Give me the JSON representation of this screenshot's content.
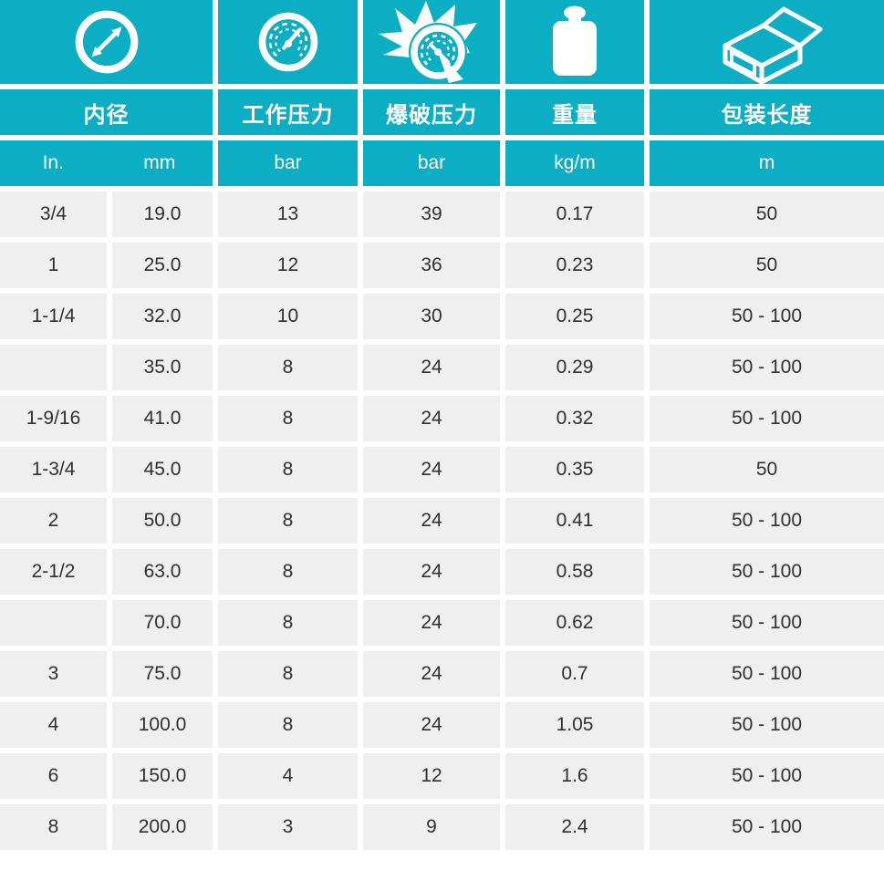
{
  "theme": {
    "accent": "#0BAEC2",
    "cell_bg": "#EFEFEF",
    "cell_text": "#303030",
    "header_text": "#FFFFFF",
    "page_bg": "#FFFFFF"
  },
  "header": {
    "columns": [
      {
        "id": "inner-diameter",
        "icon": "diameter-icon",
        "label": "内径",
        "units": [
          "In.",
          "mm"
        ]
      },
      {
        "id": "working-pressure",
        "icon": "pressure-gauge-icon",
        "label": "工作压力",
        "unit": "bar"
      },
      {
        "id": "burst-pressure",
        "icon": "burst-gauge-icon",
        "label": "爆破压力",
        "unit": "bar"
      },
      {
        "id": "weight",
        "icon": "weight-icon",
        "label": "重量",
        "unit": "kg/m"
      },
      {
        "id": "packing-length",
        "icon": "package-box-icon",
        "label": "包装长度",
        "unit": "m"
      }
    ]
  },
  "table": {
    "rows": [
      {
        "in": "3/4",
        "mm": "19.0",
        "working_pressure_bar": "13",
        "burst_pressure_bar": "39",
        "weight_kg_m": "0.17",
        "packing_length_m": "50"
      },
      {
        "in": "1",
        "mm": "25.0",
        "working_pressure_bar": "12",
        "burst_pressure_bar": "36",
        "weight_kg_m": "0.23",
        "packing_length_m": "50"
      },
      {
        "in": "1-1/4",
        "mm": "32.0",
        "working_pressure_bar": "10",
        "burst_pressure_bar": "30",
        "weight_kg_m": "0.25",
        "packing_length_m": "50 - 100"
      },
      {
        "in": "",
        "mm": "35.0",
        "working_pressure_bar": "8",
        "burst_pressure_bar": "24",
        "weight_kg_m": "0.29",
        "packing_length_m": "50 - 100"
      },
      {
        "in": "1-9/16",
        "mm": "41.0",
        "working_pressure_bar": "8",
        "burst_pressure_bar": "24",
        "weight_kg_m": "0.32",
        "packing_length_m": "50 - 100"
      },
      {
        "in": "1-3/4",
        "mm": "45.0",
        "working_pressure_bar": "8",
        "burst_pressure_bar": "24",
        "weight_kg_m": "0.35",
        "packing_length_m": "50"
      },
      {
        "in": "2",
        "mm": "50.0",
        "working_pressure_bar": "8",
        "burst_pressure_bar": "24",
        "weight_kg_m": "0.41",
        "packing_length_m": "50 - 100"
      },
      {
        "in": "2-1/2",
        "mm": "63.0",
        "working_pressure_bar": "8",
        "burst_pressure_bar": "24",
        "weight_kg_m": "0.58",
        "packing_length_m": "50 - 100"
      },
      {
        "in": "",
        "mm": "70.0",
        "working_pressure_bar": "8",
        "burst_pressure_bar": "24",
        "weight_kg_m": "0.62",
        "packing_length_m": "50 - 100"
      },
      {
        "in": "3",
        "mm": "75.0",
        "working_pressure_bar": "8",
        "burst_pressure_bar": "24",
        "weight_kg_m": "0.7",
        "packing_length_m": "50 - 100"
      },
      {
        "in": "4",
        "mm": "100.0",
        "working_pressure_bar": "8",
        "burst_pressure_bar": "24",
        "weight_kg_m": "1.05",
        "packing_length_m": "50 - 100"
      },
      {
        "in": "6",
        "mm": "150.0",
        "working_pressure_bar": "4",
        "burst_pressure_bar": "12",
        "weight_kg_m": "1.6",
        "packing_length_m": "50 - 100"
      },
      {
        "in": "8",
        "mm": "200.0",
        "working_pressure_bar": "3",
        "burst_pressure_bar": "9",
        "weight_kg_m": "2.4",
        "packing_length_m": "50 - 100"
      }
    ]
  }
}
